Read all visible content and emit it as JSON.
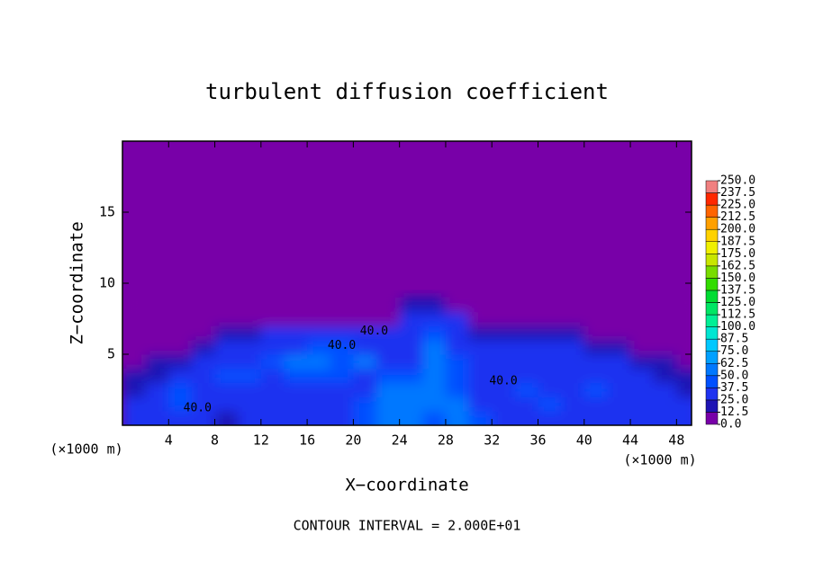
{
  "chart_data": {
    "type": "contour",
    "title": "turbulent diffusion coefficient",
    "xlabel": "X−coordinate",
    "ylabel": "Z−coordinate",
    "x_unit_left": "(×1000 m)",
    "x_unit_right": "(×1000 m)",
    "footer": "CONTOUR INTERVAL = 2.000E+01",
    "xlim": [
      0,
      49.3
    ],
    "ylim": [
      0,
      20
    ],
    "xticks": [
      4,
      8,
      12,
      16,
      20,
      24,
      28,
      32,
      36,
      40,
      44,
      48
    ],
    "yticks": [
      5,
      10,
      15
    ],
    "x": [
      1,
      3,
      5,
      7,
      9,
      11,
      13,
      15,
      17,
      19,
      21,
      23,
      25,
      27,
      29,
      31,
      33,
      35,
      37,
      39,
      41,
      43,
      45,
      47,
      49
    ],
    "y": [
      0.5,
      1.5,
      2.5,
      3.5,
      4.5,
      5.5,
      6.5,
      7.5,
      8.5
    ],
    "z": [
      [
        25,
        30,
        25,
        30,
        20,
        25,
        30,
        30,
        35,
        35,
        40,
        55,
        60,
        45,
        55,
        40,
        35,
        30,
        35,
        30,
        30,
        25,
        30,
        25,
        30
      ],
      [
        30,
        35,
        40,
        30,
        35,
        25,
        30,
        30,
        35,
        35,
        45,
        55,
        50,
        60,
        50,
        35,
        30,
        30,
        40,
        30,
        25,
        35,
        30,
        30,
        25
      ],
      [
        20,
        30,
        40,
        35,
        30,
        35,
        30,
        35,
        30,
        35,
        35,
        50,
        55,
        60,
        45,
        30,
        35,
        45,
        30,
        25,
        40,
        35,
        25,
        30,
        20
      ],
      [
        15,
        20,
        30,
        35,
        40,
        45,
        30,
        40,
        45,
        40,
        30,
        45,
        40,
        55,
        40,
        35,
        30,
        25,
        35,
        30,
        35,
        30,
        30,
        20,
        15
      ],
      [
        5,
        15,
        20,
        30,
        30,
        35,
        45,
        50,
        55,
        45,
        50,
        30,
        35,
        55,
        40,
        30,
        35,
        30,
        30,
        35,
        30,
        25,
        20,
        15,
        5
      ],
      [
        0,
        5,
        10,
        20,
        25,
        30,
        35,
        30,
        40,
        45,
        35,
        30,
        30,
        50,
        35,
        30,
        30,
        25,
        30,
        25,
        20,
        15,
        10,
        5,
        0
      ],
      [
        0,
        0,
        5,
        10,
        15,
        20,
        25,
        30,
        30,
        30,
        25,
        25,
        35,
        45,
        30,
        20,
        20,
        20,
        15,
        15,
        10,
        5,
        5,
        0,
        0
      ],
      [
        0,
        0,
        0,
        0,
        0,
        5,
        5,
        5,
        10,
        10,
        10,
        10,
        30,
        35,
        25,
        10,
        5,
        5,
        5,
        0,
        0,
        0,
        0,
        0,
        0
      ],
      [
        0,
        0,
        0,
        0,
        0,
        0,
        0,
        0,
        0,
        0,
        0,
        5,
        15,
        20,
        10,
        0,
        0,
        0,
        0,
        0,
        0,
        0,
        0,
        0,
        0
      ]
    ],
    "levels": [
      {
        "value": 0,
        "label": "0.0"
      },
      {
        "value": 12.5,
        "label": "12.5"
      },
      {
        "value": 25,
        "label": "25.0"
      },
      {
        "value": 37.5,
        "label": "37.5"
      },
      {
        "value": 50,
        "label": "50.0"
      },
      {
        "value": 62.5,
        "label": "62.5"
      },
      {
        "value": 75,
        "label": "75.0"
      },
      {
        "value": 87.5,
        "label": "87.5"
      },
      {
        "value": 100,
        "label": "100.0"
      },
      {
        "value": 112.5,
        "label": "112.5"
      },
      {
        "value": 125,
        "label": "125.0"
      },
      {
        "value": 137.5,
        "label": "137.5"
      },
      {
        "value": 150,
        "label": "150.0"
      },
      {
        "value": 162.5,
        "label": "162.5"
      },
      {
        "value": 175,
        "label": "175.0"
      },
      {
        "value": 187.5,
        "label": "187.5"
      },
      {
        "value": 200,
        "label": "200.0"
      },
      {
        "value": 212.5,
        "label": "212.5"
      },
      {
        "value": 225,
        "label": "225.0"
      },
      {
        "value": 237.5,
        "label": "237.5"
      },
      {
        "value": 250,
        "label": "250.0"
      }
    ],
    "colors": [
      "#7800a8",
      "#1e14b4",
      "#1e32f0",
      "#0050ff",
      "#0078ff",
      "#00a0ff",
      "#00c8ff",
      "#00e6d2",
      "#00f096",
      "#00e664",
      "#00dc32",
      "#32dc00",
      "#78dc00",
      "#c8e600",
      "#f0f000",
      "#ffd200",
      "#ffa000",
      "#ff6400",
      "#ff2800",
      "#f08080"
    ],
    "annotations": [
      {
        "text": "40.0",
        "x": 21.8,
        "y": 6.6
      },
      {
        "text": "40.0",
        "x": 19,
        "y": 5.6
      },
      {
        "text": "40.0",
        "x": 33,
        "y": 3.1
      },
      {
        "text": "40.0",
        "x": 6.5,
        "y": 1.2
      }
    ]
  }
}
